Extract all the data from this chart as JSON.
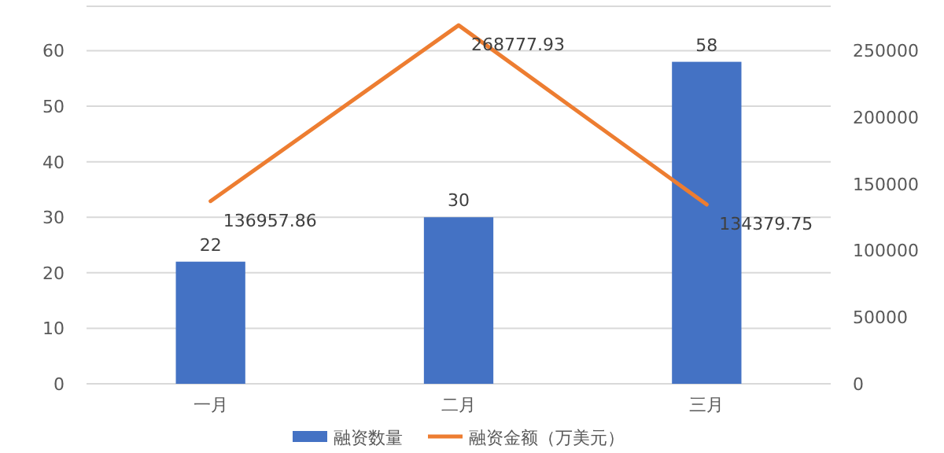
{
  "chart_data": {
    "type": "bar",
    "categories": [
      "一月",
      "二月",
      "三月"
    ],
    "series": [
      {
        "name": "融资数量",
        "color": "#4472c4",
        "values": [
          22,
          30,
          58
        ]
      },
      {
        "name": "融资金额（万美元）",
        "type": "line",
        "axis": "y2",
        "color": "#ed7d31",
        "values": [
          136957.86,
          268777.93,
          134379.75
        ]
      }
    ],
    "ylim": [
      0,
      68
    ],
    "yticks": [
      0,
      10,
      20,
      30,
      40,
      50,
      60
    ],
    "y2lim": [
      0,
      283000
    ],
    "y2ticks": [
      0,
      50000,
      100000,
      150000,
      200000,
      250000
    ],
    "grid": "y",
    "legend": "bottom",
    "data_labels": true
  }
}
